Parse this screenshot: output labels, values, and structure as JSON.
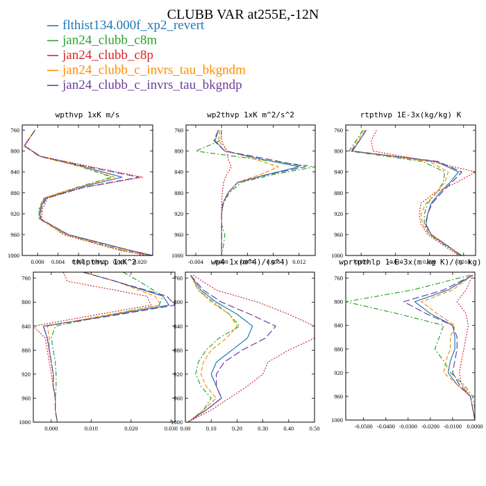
{
  "figure": {
    "title": "CLUBB VAR at255E,-12N"
  },
  "colors": {
    "flthist134.000f_xp2_revert": "#1f77b4",
    "jan24_clubb_c8m": "#2ca02c",
    "jan24_clubb_c8p": "#d62728",
    "jan24_clubb_c_invrs_tau_bkgndm": "#ff8c00",
    "jan24_clubb_c_invrs_tau_bkgndp": "#6a3d9a"
  },
  "legend": [
    {
      "name": "flthist134.000f_xp2_revert",
      "color": "#1f77b4",
      "dash": "solid"
    },
    {
      "name": "jan24_clubb_c8m",
      "color": "#2ca02c",
      "dash": "dashdot"
    },
    {
      "name": "jan24_clubb_c8p",
      "color": "#d62728",
      "dash": "dot"
    },
    {
      "name": "jan24_clubb_c_invrs_tau_bkgndm",
      "color": "#ff8c00",
      "dash": "dash"
    },
    {
      "name": "jan24_clubb_c_invrs_tau_bkgndp",
      "color": "#6a3d9a",
      "dash": "longdash"
    }
  ],
  "chart_data": [
    {
      "type": "line",
      "title": "wpthvp  1xK m/s",
      "xlim": [
        -0.003,
        0.0225
      ],
      "ylim": [
        1000,
        750
      ],
      "xticks": [
        0.0,
        0.004,
        0.008,
        0.012,
        0.016,
        0.02
      ],
      "xticklabels": [
        "0.000",
        "0.004",
        "0.008",
        "0.012",
        "0.016",
        "0.020"
      ],
      "yticks": [
        760,
        800,
        840,
        880,
        920,
        960,
        1000
      ],
      "yticklabels": [
        "760",
        "800",
        "840",
        "880",
        "920",
        "960",
        "1000"
      ],
      "y": [
        760,
        790,
        810,
        830,
        850,
        870,
        890,
        910,
        930,
        960,
        990,
        1000
      ],
      "series": [
        {
          "name": "flthist134.000f_xp2_revert",
          "x": [
            -0.0005,
            -0.0026,
            0.0005,
            0.009,
            0.0165,
            0.008,
            0.0015,
            0.0005,
            0.0005,
            0.006,
            0.018,
            0.0225
          ]
        },
        {
          "name": "jan24_clubb_c8m",
          "x": [
            -0.0005,
            -0.0026,
            0.0003,
            0.0085,
            0.0145,
            0.0075,
            0.0012,
            0.0003,
            0.0003,
            0.0055,
            0.0165,
            0.0222
          ]
        },
        {
          "name": "jan24_clubb_c8p",
          "x": [
            -0.0005,
            -0.0025,
            0.0006,
            0.0105,
            0.0205,
            0.009,
            0.002,
            0.001,
            0.0008,
            0.005,
            0.016,
            0.0215
          ]
        },
        {
          "name": "jan24_clubb_c_invrs_tau_bkgndm",
          "x": [
            -0.0005,
            -0.0026,
            0.0004,
            0.0088,
            0.015,
            0.0077,
            0.0013,
            0.0004,
            0.0004,
            0.0057,
            0.017,
            0.0222
          ]
        },
        {
          "name": "jan24_clubb_c_invrs_tau_bkgndp",
          "x": [
            -0.0005,
            -0.0026,
            0.0005,
            0.0098,
            0.0198,
            0.0088,
            0.0017,
            0.0007,
            0.0006,
            0.006,
            0.018,
            0.0224
          ]
        }
      ]
    },
    {
      "type": "line",
      "title": "wp2thvp  1xK m^2/s^2",
      "xlim": [
        -0.0055,
        0.0145
      ],
      "ylim": [
        1000,
        750
      ],
      "xticks": [
        -0.004,
        0.0,
        0.004,
        0.008,
        0.012
      ],
      "xticklabels": [
        "-0.004",
        "0.000",
        "0.004",
        "0.008",
        "0.012"
      ],
      "yticks": [
        760,
        800,
        840,
        880,
        920,
        960,
        1000
      ],
      "yticklabels": [
        "760",
        "800",
        "840",
        "880",
        "920",
        "960",
        "1000"
      ],
      "y": [
        760,
        780,
        800,
        815,
        830,
        845,
        860,
        880,
        900,
        920,
        940,
        960,
        980,
        1000
      ],
      "series": [
        {
          "name": "flthist134.000f_xp2_revert",
          "x": [
            -0.0005,
            -0.001,
            0.0005,
            0.006,
            0.012,
            0.007,
            0.0025,
            0.001,
            0.0002,
            0.0,
            0.0,
            0.0,
            0.0,
            0.0
          ]
        },
        {
          "name": "jan24_clubb_c8m",
          "x": [
            0.0,
            -0.0002,
            -0.004,
            0.005,
            0.0145,
            0.008,
            0.003,
            0.0012,
            0.0003,
            0.0,
            0.0,
            0.0005,
            0.0003,
            0.0
          ]
        },
        {
          "name": "jan24_clubb_c8p",
          "x": [
            0.0,
            0.0,
            0.0008,
            0.001,
            0.0015,
            0.0008,
            0.0003,
            0.0001,
            0.0,
            0.0,
            0.0,
            0.0,
            0.0,
            0.0
          ]
        },
        {
          "name": "jan24_clubb_c_invrs_tau_bkgndm",
          "x": [
            -0.0003,
            -0.0005,
            0.001,
            0.005,
            0.0088,
            0.006,
            0.0025,
            0.001,
            0.0002,
            0.0,
            0.0,
            0.0,
            0.0,
            0.0
          ]
        },
        {
          "name": "jan24_clubb_c_invrs_tau_bkgndp",
          "x": [
            -0.0005,
            -0.0012,
            0.0005,
            0.007,
            0.013,
            0.0072,
            0.0025,
            0.001,
            0.0002,
            0.0,
            0.0,
            0.0,
            0.0,
            0.0
          ]
        }
      ]
    },
    {
      "type": "line",
      "title": "rtpthvp  1E-3x(kg/kg) K",
      "xlim": [
        -0.0245,
        0.0135
      ],
      "ylim": [
        1000,
        750
      ],
      "xticks": [
        -0.02,
        -0.01,
        0.0,
        0.01
      ],
      "xticklabels": [
        "-0.020",
        "-0.010",
        "0.000",
        "0.010"
      ],
      "yticks": [
        760,
        800,
        840,
        880,
        920,
        960,
        1000
      ],
      "yticklabels": [
        "760",
        "800",
        "840",
        "880",
        "920",
        "960",
        "1000"
      ],
      "y": [
        760,
        780,
        800,
        820,
        840,
        860,
        880,
        900,
        920,
        940,
        960,
        980,
        1000
      ],
      "series": [
        {
          "name": "flthist134.000f_xp2_revert",
          "x": [
            -0.0185,
            -0.0205,
            -0.0225,
            0.002,
            0.0085,
            0.006,
            0.003,
            0.0005,
            -0.0005,
            -0.001,
            0.0005,
            0.005,
            0.009
          ]
        },
        {
          "name": "jan24_clubb_c8m",
          "x": [
            -0.0195,
            -0.0215,
            -0.0235,
            -0.002,
            0.0045,
            0.004,
            0.002,
            -0.0005,
            -0.0015,
            -0.0015,
            0.0,
            0.0045,
            0.0095
          ]
        },
        {
          "name": "jan24_clubb_c8p",
          "x": [
            -0.0155,
            -0.017,
            -0.0165,
            0.0005,
            0.0135,
            0.008,
            0.0015,
            -0.0025,
            -0.003,
            -0.0025,
            -0.0005,
            0.004,
            0.0085
          ]
        },
        {
          "name": "jan24_clubb_c_invrs_tau_bkgndm",
          "x": [
            -0.019,
            -0.021,
            -0.023,
            0.0,
            0.0055,
            0.0045,
            0.002,
            -0.001,
            -0.0025,
            -0.002,
            0.0,
            0.005,
            0.0095
          ]
        },
        {
          "name": "jan24_clubb_c_invrs_tau_bkgndp",
          "x": [
            -0.0185,
            -0.0205,
            -0.0228,
            0.0025,
            0.0095,
            0.0065,
            0.0035,
            0.0008,
            -0.0005,
            -0.0012,
            0.0005,
            0.005,
            0.0092
          ]
        }
      ]
    },
    {
      "type": "line",
      "title": "thlpthvp  1xK^2",
      "xlim": [
        -0.0045,
        0.031
      ],
      "ylim": [
        1000,
        750
      ],
      "xticks": [
        0.0,
        0.01,
        0.02,
        0.03
      ],
      "xticklabels": [
        "0.000",
        "0.010",
        "0.020",
        "0.030"
      ],
      "yticks": [
        760,
        800,
        840,
        880,
        920,
        960,
        1000
      ],
      "yticklabels": [
        "760",
        "800",
        "840",
        "880",
        "920",
        "960",
        "1000"
      ],
      "y": [
        750,
        765,
        790,
        805,
        825,
        840,
        860,
        880,
        900,
        920,
        940,
        960,
        980,
        1000
      ],
      "series": [
        {
          "name": "flthist134.000f_xp2_revert",
          "x": [
            0.008,
            0.016,
            0.028,
            0.0295,
            0.012,
            -0.002,
            -0.001,
            -0.0005,
            0.0,
            0.0005,
            0.0005,
            0.001,
            0.001,
            0.0015
          ]
        },
        {
          "name": "jan24_clubb_c8m",
          "x": [
            0.018,
            0.022,
            0.028,
            0.027,
            0.012,
            0.001,
            0.0,
            0.0005,
            0.001,
            0.0012,
            0.0012,
            0.001,
            0.001,
            0.0015
          ]
        },
        {
          "name": "jan24_clubb_c8p",
          "x": [
            0.003,
            0.004,
            0.024,
            0.025,
            0.008,
            -0.0045,
            -0.0015,
            -0.001,
            -0.0005,
            0.0,
            0.0005,
            0.001,
            0.001,
            0.0015
          ]
        },
        {
          "name": "jan24_clubb_c_invrs_tau_bkgndm",
          "x": [
            0.008,
            0.016,
            0.026,
            0.0275,
            0.011,
            -0.001,
            -0.0005,
            -0.0005,
            0.0,
            0.0005,
            0.0005,
            0.001,
            0.001,
            0.0015
          ]
        },
        {
          "name": "jan24_clubb_c_invrs_tau_bkgndp",
          "x": [
            0.008,
            0.016,
            0.029,
            0.031,
            0.013,
            -0.002,
            -0.001,
            -0.0005,
            0.0,
            0.0005,
            0.0005,
            0.001,
            0.001,
            0.0015
          ]
        }
      ]
    },
    {
      "type": "line",
      "title": "wp4  1x(m^4)/(s^4)",
      "xlim": [
        0.0,
        0.5
      ],
      "ylim": [
        1000,
        750
      ],
      "xticks": [
        0.0,
        0.1,
        0.2,
        0.3,
        0.4,
        0.5
      ],
      "xticklabels": [
        "0.00",
        "0.10",
        "0.20",
        "0.30",
        "0.40",
        "0.50"
      ],
      "yticks": [
        760,
        800,
        840,
        880,
        920,
        960,
        1000
      ],
      "yticklabels": [
        "760",
        "800",
        "840",
        "880",
        "920",
        "960",
        "1000"
      ],
      "y": [
        755,
        780,
        800,
        820,
        840,
        860,
        880,
        900,
        920,
        940,
        960,
        980,
        1000
      ],
      "series": [
        {
          "name": "flthist134.000f_xp2_revert",
          "x": [
            0.02,
            0.06,
            0.12,
            0.2,
            0.26,
            0.24,
            0.18,
            0.12,
            0.1,
            0.12,
            0.14,
            0.08,
            0.01
          ]
        },
        {
          "name": "jan24_clubb_c8m",
          "x": [
            0.02,
            0.05,
            0.11,
            0.17,
            0.21,
            0.13,
            0.08,
            0.05,
            0.04,
            0.06,
            0.1,
            0.07,
            0.01
          ]
        },
        {
          "name": "jan24_clubb_c8p",
          "x": [
            0.03,
            0.12,
            0.28,
            0.4,
            0.5,
            0.5,
            0.4,
            0.32,
            0.3,
            0.24,
            0.17,
            0.1,
            0.01
          ]
        },
        {
          "name": "jan24_clubb_c_invrs_tau_bkgndm",
          "x": [
            0.02,
            0.05,
            0.1,
            0.17,
            0.2,
            0.16,
            0.1,
            0.07,
            0.06,
            0.08,
            0.12,
            0.07,
            0.01
          ]
        },
        {
          "name": "jan24_clubb_c_invrs_tau_bkgndp",
          "x": [
            0.02,
            0.07,
            0.14,
            0.25,
            0.35,
            0.31,
            0.22,
            0.15,
            0.12,
            0.12,
            0.14,
            0.08,
            0.01
          ]
        }
      ]
    },
    {
      "type": "line",
      "title": "wprtpthlp  1-E-3x(m kg K)/(s kg)",
      "xlim": [
        -0.058,
        0.0
      ],
      "ylim": [
        1000,
        750
      ],
      "xticks": [
        -0.05,
        -0.04,
        -0.03,
        -0.02,
        -0.01,
        0.0
      ],
      "xticklabels": [
        "-0.0500",
        "-0.0400",
        "-0.0300",
        "-0.0200",
        "-0.0100",
        "0.0000"
      ],
      "yticks": [
        760,
        800,
        840,
        880,
        920,
        960,
        1000
      ],
      "yticklabels": [
        "760",
        "800",
        "840",
        "880",
        "920",
        "960",
        "1000"
      ],
      "y": [
        755,
        780,
        800,
        820,
        840,
        860,
        880,
        900,
        920,
        940,
        960,
        980,
        1000
      ],
      "series": [
        {
          "name": "flthist134.000f_xp2_revert",
          "x": [
            -0.001,
            -0.012,
            -0.027,
            -0.02,
            -0.01,
            -0.009,
            -0.009,
            -0.011,
            -0.012,
            -0.008,
            -0.002,
            -0.001,
            0.0
          ]
        },
        {
          "name": "jan24_clubb_c8m",
          "x": [
            -0.002,
            -0.028,
            -0.058,
            -0.035,
            -0.014,
            -0.016,
            -0.018,
            -0.014,
            -0.011,
            -0.005,
            -0.001,
            0.0,
            0.0
          ]
        },
        {
          "name": "jan24_clubb_c8p",
          "x": [
            -0.001,
            -0.004,
            -0.008,
            -0.004,
            -0.003,
            -0.004,
            -0.005,
            -0.006,
            -0.007,
            -0.006,
            -0.002,
            -0.001,
            0.0
          ]
        },
        {
          "name": "jan24_clubb_c_invrs_tau_bkgndm",
          "x": [
            -0.001,
            -0.01,
            -0.024,
            -0.017,
            -0.009,
            -0.011,
            -0.011,
            -0.013,
            -0.014,
            -0.008,
            -0.002,
            -0.001,
            0.0
          ]
        },
        {
          "name": "jan24_clubb_c_invrs_tau_bkgndp",
          "x": [
            -0.001,
            -0.014,
            -0.032,
            -0.022,
            -0.01,
            -0.008,
            -0.008,
            -0.009,
            -0.01,
            -0.007,
            -0.002,
            -0.001,
            0.0
          ]
        }
      ]
    }
  ]
}
